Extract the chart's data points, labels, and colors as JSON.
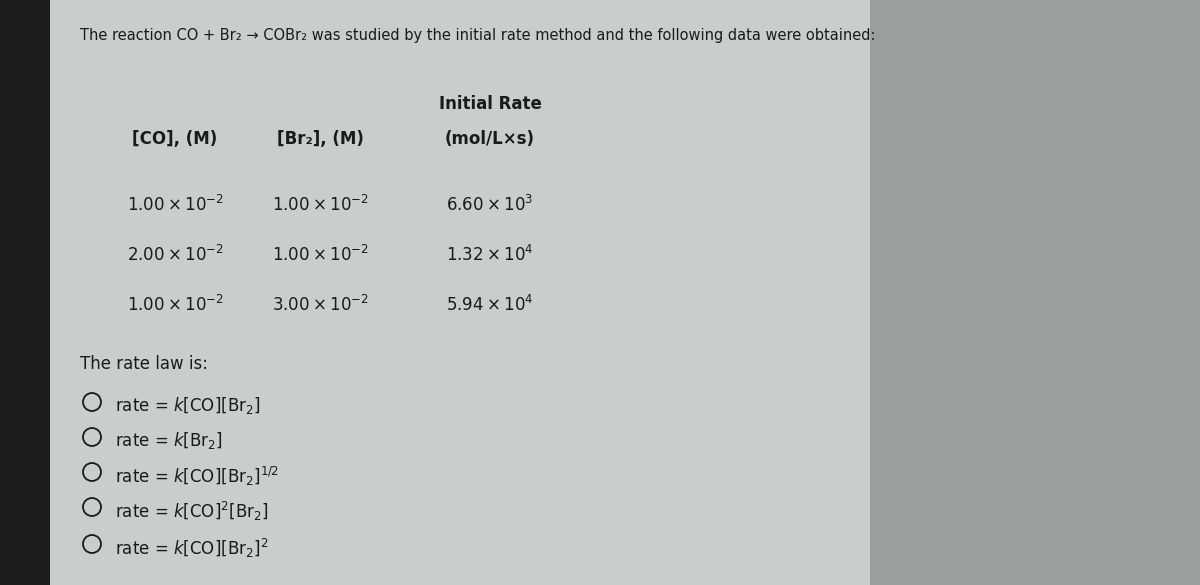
{
  "bg_color": "#c8cece",
  "left_strip_color": "#2a2a2a",
  "text_color": "#1a1a1a",
  "title": "The reaction CO + Br₂ → COBr₂ was studied by the initial rate method and the following data were obtained:",
  "initial_rate_label": "Initial Rate",
  "col1_header": "[CO], (M)",
  "col2_header": "[Br₂], (M)",
  "col3_header": "(mol/L×s)",
  "rows": [
    [
      "1.00 × 10⁻²",
      "1.00 × 10⁻²",
      "6.60 × 10³"
    ],
    [
      "2.00 × 10⁻²",
      "1.00 × 10⁻²",
      "1.32 × 10⁴"
    ],
    [
      "1.00 × 10⁻²",
      "3.00 × 10⁻²",
      "5.94 × 10⁴"
    ]
  ],
  "rate_law_label": "The rate law is:",
  "options_texts": [
    "rate = k[CO][Br₂]",
    "rate = k[Br₂]",
    "rate = k[CO][Br₂]^{1/2}",
    "rate = k[CO]^{2}[Br₂]",
    "rate = k[CO][Br₂]^{2}"
  ]
}
